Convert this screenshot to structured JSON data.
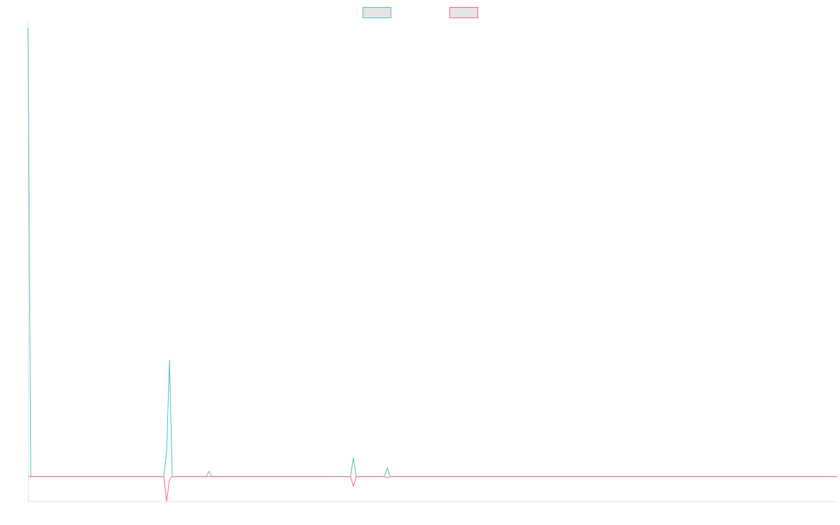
{
  "chart_data": {
    "type": "line",
    "title": "",
    "xlabel": "",
    "ylabel": "",
    "x_count": 287,
    "ylim": [
      -7,
      129
    ],
    "legend": {
      "placement": "top-center"
    },
    "grid": false,
    "series": [
      {
        "name": "",
        "color": "#4bc0c0",
        "fill": "rgba(201,203,207,0.5)",
        "points": [
          [
            0,
            127
          ],
          [
            1,
            0
          ],
          [
            48,
            0
          ],
          [
            49,
            7
          ],
          [
            50,
            33
          ],
          [
            51,
            0
          ],
          [
            63,
            0
          ],
          [
            64,
            1.5
          ],
          [
            65,
            0
          ],
          [
            114,
            0
          ],
          [
            115,
            5.3
          ],
          [
            116,
            0
          ],
          [
            126,
            0
          ],
          [
            127,
            2.5
          ],
          [
            128,
            0
          ],
          [
            286,
            0
          ]
        ]
      },
      {
        "name": "",
        "color": "#ff6384",
        "fill": "rgba(201,203,207,0.5)",
        "points": [
          [
            0,
            0
          ],
          [
            48,
            0
          ],
          [
            49,
            -7
          ],
          [
            50,
            -1
          ],
          [
            51,
            0
          ],
          [
            114,
            0
          ],
          [
            115,
            -2.8
          ],
          [
            116,
            0
          ],
          [
            126,
            0
          ],
          [
            127,
            -0.4
          ],
          [
            128,
            0
          ],
          [
            286,
            0
          ]
        ]
      }
    ]
  }
}
